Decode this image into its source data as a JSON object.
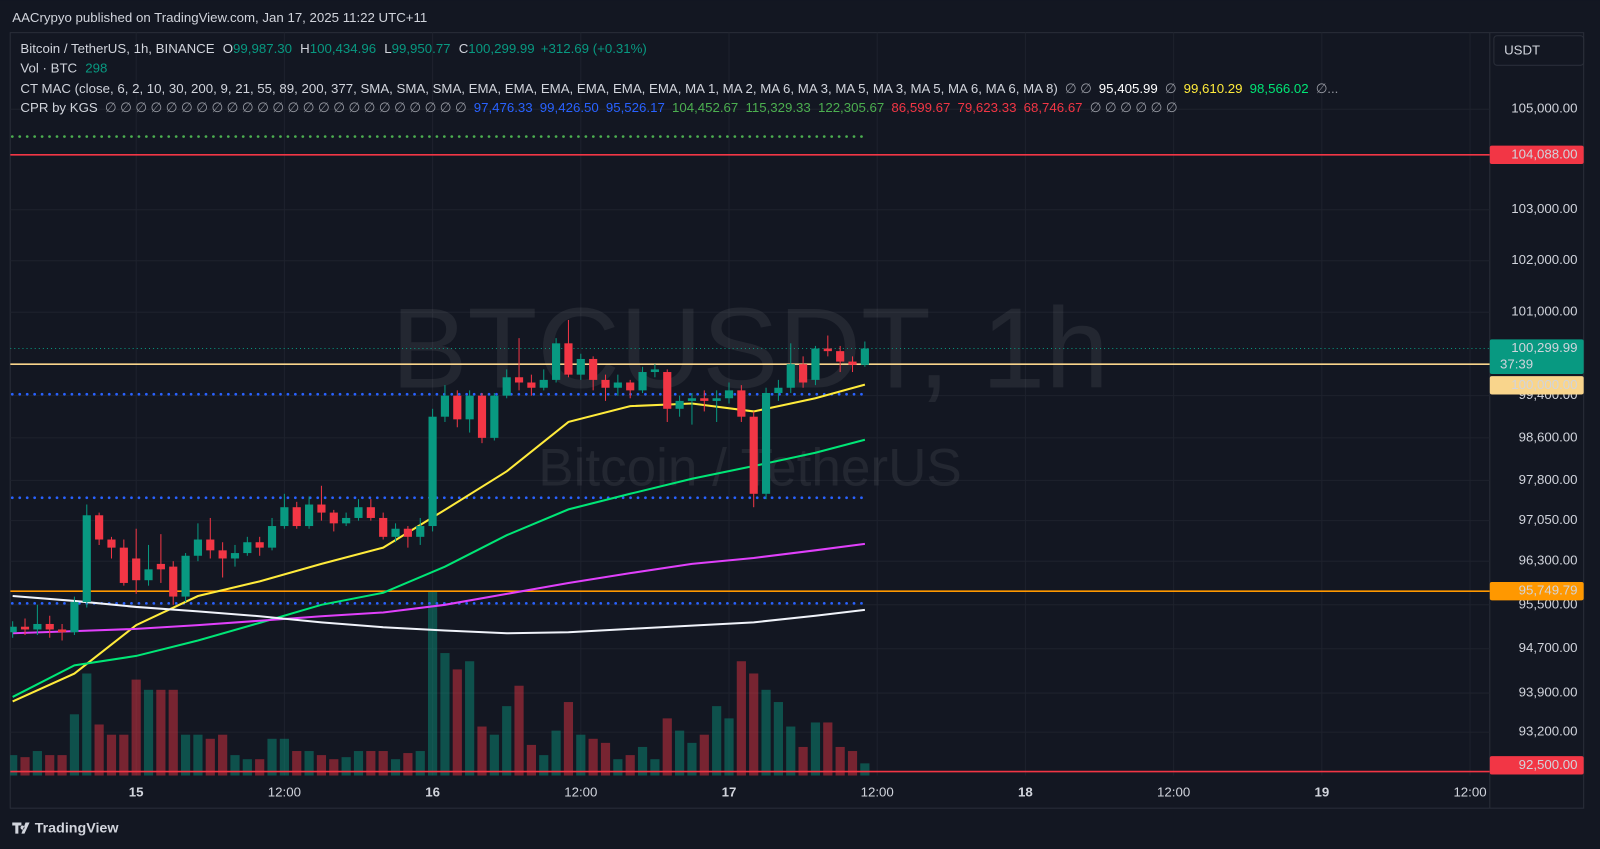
{
  "header": "AACrypyo published on TradingView.com, Jan 17, 2025 11:22 UTC+11",
  "brand": "TradingView",
  "currency": "USDT",
  "legend": {
    "symbol": "Bitcoin / TetherUS, 1h, BINANCE",
    "ohlc": [
      {
        "key": "O",
        "text": "99,987.30"
      },
      {
        "key": "H",
        "text": "100,434.96"
      },
      {
        "key": "L",
        "text": "99,950.77"
      },
      {
        "key": "C",
        "text": "100,299.99"
      }
    ],
    "change": "+312.69 (+0.31%)",
    "volume_title": "Vol · BTC",
    "indicator": {
      "name": "CT MAC (close, 6, 2, 10, 30, 200, 9, 21, 55, 89, 200, 377, SMA, SMA, SMA, EMA, EMA, EMA, EMA, EMA, EMA, MA 1, MA 2, MA 6, MA 3, MA 5, MA 3, MA 5, MA 6, MA 6, MA 8)",
      "items": [
        {
          "text": "∅ ∅",
          "color": "#9598a1"
        },
        {
          "text": "95,405.99",
          "color": "#ffffff"
        },
        {
          "text": "∅",
          "color": "#9598a1"
        },
        {
          "text": "99,610.29",
          "color": "#ffeb3b"
        },
        {
          "text": "98,566.02",
          "color": "#00e676"
        },
        {
          "text": "∅...",
          "color": "#9598a1"
        }
      ]
    },
    "cpr": {
      "name": "CPR by KGS",
      "prefix": "∅ ∅ ∅ ∅ ∅ ∅ ∅ ∅ ∅ ∅ ∅ ∅ ∅ ∅ ∅ ∅ ∅ ∅ ∅ ∅ ∅ ∅ ∅ ∅",
      "suffix": "∅ ∅ ∅ ∅ ∅ ∅"
    }
  },
  "chart_data": {
    "type": "candlestick",
    "watermark": [
      "BTCUSDT, 1h",
      "Bitcoin / TetherUS"
    ],
    "up_color": "#089981",
    "down_color": "#f23645",
    "log": true,
    "grid": true,
    "ylim": [
      92430,
      106550
    ],
    "yticks": [
      {
        "value": 105000,
        "label": "105,000.00"
      },
      {
        "value": 103000,
        "label": "103,000.00"
      },
      {
        "value": 102000,
        "label": "102,000.00"
      },
      {
        "value": 101000,
        "label": "101,000.00"
      },
      {
        "value": 99400,
        "label": "99,400.00"
      },
      {
        "value": 98600,
        "label": "98,600.00"
      },
      {
        "value": 97800,
        "label": "97,800.00"
      },
      {
        "value": 97050,
        "label": "97,050.00"
      },
      {
        "value": 96300,
        "label": "96,300.00"
      },
      {
        "value": 95500,
        "label": "95,500.00"
      },
      {
        "value": 94700,
        "label": "94,700.00"
      },
      {
        "value": 93900,
        "label": "93,900.00"
      },
      {
        "value": 93200,
        "label": "93,200.00"
      }
    ],
    "xlim": [
      "2025-01-14T13:48",
      "2025-01-19T13:36"
    ],
    "xticks": [
      {
        "value": "2025-01-15T00:00",
        "label": "15"
      },
      {
        "value": "2025-01-15T12:00",
        "label": "12:00"
      },
      {
        "value": "2025-01-16T00:00",
        "label": "16"
      },
      {
        "value": "2025-01-16T12:00",
        "label": "12:00"
      },
      {
        "value": "2025-01-17T00:00",
        "label": "17"
      },
      {
        "value": "2025-01-17T12:00",
        "label": "12:00"
      },
      {
        "value": "2025-01-18T00:00",
        "label": "18"
      },
      {
        "value": "2025-01-18T12:00",
        "label": "12:00"
      },
      {
        "value": "2025-01-19T00:00",
        "label": "19"
      },
      {
        "value": "2025-01-19T12:00",
        "label": "12:00"
      }
    ],
    "x": [
      "2025-01-14T14:00",
      "2025-01-14T15:00",
      "2025-01-14T16:00",
      "2025-01-14T17:00",
      "2025-01-14T18:00",
      "2025-01-14T19:00",
      "2025-01-14T20:00",
      "2025-01-14T21:00",
      "2025-01-14T22:00",
      "2025-01-14T23:00",
      "2025-01-15T00:00",
      "2025-01-15T01:00",
      "2025-01-15T02:00",
      "2025-01-15T03:00",
      "2025-01-15T04:00",
      "2025-01-15T05:00",
      "2025-01-15T06:00",
      "2025-01-15T07:00",
      "2025-01-15T08:00",
      "2025-01-15T09:00",
      "2025-01-15T10:00",
      "2025-01-15T11:00",
      "2025-01-15T12:00",
      "2025-01-15T13:00",
      "2025-01-15T14:00",
      "2025-01-15T15:00",
      "2025-01-15T16:00",
      "2025-01-15T17:00",
      "2025-01-15T18:00",
      "2025-01-15T19:00",
      "2025-01-15T20:00",
      "2025-01-15T21:00",
      "2025-01-15T22:00",
      "2025-01-15T23:00",
      "2025-01-16T00:00",
      "2025-01-16T01:00",
      "2025-01-16T02:00",
      "2025-01-16T03:00",
      "2025-01-16T04:00",
      "2025-01-16T05:00",
      "2025-01-16T06:00",
      "2025-01-16T07:00",
      "2025-01-16T08:00",
      "2025-01-16T09:00",
      "2025-01-16T10:00",
      "2025-01-16T11:00",
      "2025-01-16T12:00",
      "2025-01-16T13:00",
      "2025-01-16T14:00",
      "2025-01-16T15:00",
      "2025-01-16T16:00",
      "2025-01-16T17:00",
      "2025-01-16T18:00",
      "2025-01-16T19:00",
      "2025-01-16T20:00",
      "2025-01-16T21:00",
      "2025-01-16T22:00",
      "2025-01-16T23:00",
      "2025-01-17T00:00",
      "2025-01-17T01:00",
      "2025-01-17T02:00",
      "2025-01-17T03:00",
      "2025-01-17T04:00",
      "2025-01-17T05:00",
      "2025-01-17T06:00",
      "2025-01-17T07:00",
      "2025-01-17T08:00",
      "2025-01-17T09:00",
      "2025-01-17T10:00",
      "2025-01-17T11:00"
    ],
    "open": [
      95000,
      95100,
      95050,
      95150,
      95050,
      95000,
      95550,
      97150,
      96700,
      96550,
      96350,
      95950,
      96250,
      96200,
      95650,
      96400,
      96700,
      96500,
      96350,
      96450,
      96650,
      96550,
      96950,
      97300,
      96950,
      97350,
      97200,
      97000,
      97100,
      97300,
      97100,
      96750,
      96900,
      96750,
      96950,
      99000,
      99400,
      98950,
      99400,
      98600,
      99400,
      99750,
      99650,
      99550,
      99700,
      100400,
      99800,
      100100,
      99700,
      99550,
      99650,
      99500,
      99850,
      99850,
      99150,
      99300,
      99350,
      99300,
      99350,
      99500,
      99000,
      97550,
      99450,
      99550,
      100000,
      99700,
      100300,
      100250,
      100050,
      99987.3
    ],
    "high": [
      95200,
      95250,
      95500,
      95300,
      95150,
      95650,
      97350,
      97200,
      96750,
      96700,
      96900,
      96600,
      96800,
      96300,
      96450,
      97000,
      97100,
      96650,
      96600,
      96750,
      96750,
      97100,
      97550,
      97400,
      97500,
      97700,
      97250,
      97200,
      97450,
      97450,
      97200,
      97000,
      96950,
      97100,
      99150,
      99600,
      99500,
      99500,
      99450,
      99450,
      99900,
      100500,
      99800,
      99900,
      100500,
      100850,
      100200,
      100150,
      99800,
      99800,
      99700,
      99950,
      100000,
      99900,
      99400,
      99450,
      99500,
      99500,
      99650,
      99600,
      99100,
      99550,
      99700,
      100400,
      100150,
      100350,
      100550,
      100350,
      100150,
      100434.96
    ],
    "low": [
      94900,
      94950,
      94950,
      94900,
      94850,
      94950,
      95450,
      96600,
      96350,
      95850,
      95700,
      95850,
      95900,
      95500,
      95550,
      96300,
      96350,
      96000,
      96200,
      96400,
      96400,
      96500,
      96900,
      96900,
      96900,
      97050,
      96850,
      96950,
      97050,
      97050,
      96700,
      96650,
      96550,
      96600,
      96850,
      98900,
      98800,
      98700,
      98500,
      98550,
      99350,
      99500,
      99400,
      99500,
      99650,
      99750,
      99700,
      99500,
      99300,
      99400,
      99350,
      99450,
      99750,
      98900,
      99000,
      98850,
      99100,
      98900,
      99250,
      98900,
      97300,
      97450,
      99300,
      99450,
      99550,
      99600,
      100150,
      99850,
      99850,
      99950.77
    ],
    "close": [
      95100,
      95050,
      95150,
      95050,
      95000,
      95550,
      97150,
      96700,
      96550,
      95900,
      95950,
      96150,
      96150,
      95650,
      96400,
      96700,
      96500,
      96350,
      96450,
      96650,
      96550,
      96950,
      97300,
      96950,
      97350,
      97200,
      97000,
      97100,
      97300,
      97100,
      96750,
      96900,
      96750,
      96950,
      99000,
      99400,
      98950,
      99400,
      98600,
      99400,
      99750,
      99650,
      99550,
      99700,
      100400,
      99800,
      100100,
      99700,
      99550,
      99650,
      99500,
      99850,
      99900,
      99150,
      99300,
      99350,
      99300,
      99350,
      99500,
      99000,
      97550,
      99450,
      99550,
      100000,
      99650,
      100300,
      100250,
      100050,
      99987.3,
      100299.99
    ],
    "volume": {
      "values": [
        500,
        450,
        600,
        500,
        500,
        1500,
        2500,
        1250,
        1000,
        1000,
        2350,
        2100,
        2100,
        2100,
        1000,
        1000,
        900,
        1000,
        500,
        400,
        400,
        900,
        900,
        600,
        600,
        500,
        400,
        450,
        600,
        600,
        600,
        400,
        550,
        600,
        4500,
        3000,
        2600,
        2800,
        1200,
        1000,
        1700,
        2200,
        750,
        500,
        1100,
        1800,
        1000,
        900,
        800,
        400,
        500,
        700,
        400,
        1400,
        1100,
        800,
        1000,
        1700,
        1400,
        2800,
        2500,
        2100,
        1800,
        1200,
        700,
        1300,
        1300,
        700,
        600,
        298
      ]
    },
    "lines": [
      {
        "color": "#ffeb3b",
        "x": [
          "2025-01-14T14:00",
          "2025-01-14T19:00",
          "2025-01-15T00:00",
          "2025-01-15T05:00",
          "2025-01-15T10:00",
          "2025-01-15T15:00",
          "2025-01-15T20:00",
          "2025-01-16T01:00",
          "2025-01-16T06:00",
          "2025-01-16T11:00",
          "2025-01-16T16:00",
          "2025-01-16T21:00",
          "2025-01-17T02:00",
          "2025-01-17T07:00",
          "2025-01-17T11:00"
        ],
        "values": [
          93750,
          94250,
          95130,
          95660,
          95930,
          96250,
          96550,
          97250,
          97970,
          98900,
          99200,
          99250,
          99100,
          99350,
          99610.29
        ]
      },
      {
        "color": "#00e676",
        "x": [
          "2025-01-14T14:00",
          "2025-01-14T19:00",
          "2025-01-15T00:00",
          "2025-01-15T05:00",
          "2025-01-15T10:00",
          "2025-01-15T15:00",
          "2025-01-15T20:00",
          "2025-01-16T01:00",
          "2025-01-16T06:00",
          "2025-01-16T11:00",
          "2025-01-16T16:00",
          "2025-01-16T21:00",
          "2025-01-17T02:00",
          "2025-01-17T07:00",
          "2025-01-17T11:00"
        ],
        "values": [
          93830,
          94400,
          94570,
          94850,
          95170,
          95500,
          95720,
          96200,
          96780,
          97260,
          97550,
          97830,
          98070,
          98320,
          98566.02
        ]
      },
      {
        "color": "#e040fb",
        "x": [
          "2025-01-14T14:00",
          "2025-01-14T19:00",
          "2025-01-15T00:00",
          "2025-01-15T05:00",
          "2025-01-15T10:00",
          "2025-01-15T15:00",
          "2025-01-15T20:00",
          "2025-01-16T01:00",
          "2025-01-16T06:00",
          "2025-01-16T11:00",
          "2025-01-16T16:00",
          "2025-01-16T21:00",
          "2025-01-17T02:00",
          "2025-01-17T07:00",
          "2025-01-17T11:00"
        ],
        "values": [
          94980,
          95020,
          95060,
          95130,
          95210,
          95290,
          95360,
          95500,
          95700,
          95900,
          96080,
          96250,
          96360,
          96500,
          96620
        ]
      },
      {
        "color": "#f0f3fa",
        "x": [
          "2025-01-14T14:00",
          "2025-01-14T19:00",
          "2025-01-15T00:00",
          "2025-01-15T05:00",
          "2025-01-15T10:00",
          "2025-01-15T15:00",
          "2025-01-15T20:00",
          "2025-01-16T01:00",
          "2025-01-16T06:00",
          "2025-01-16T11:00",
          "2025-01-16T16:00",
          "2025-01-16T21:00",
          "2025-01-17T02:00",
          "2025-01-17T07:00",
          "2025-01-17T11:00"
        ],
        "values": [
          95660,
          95570,
          95460,
          95380,
          95290,
          95180,
          95090,
          95030,
          94980,
          95000,
          95060,
          95120,
          95180,
          95300,
          95405.99
        ]
      }
    ],
    "cpr_levels": [
      {
        "value": 97476.33,
        "label": "97,476.33",
        "color": "#2962ff"
      },
      {
        "value": 99426.5,
        "label": "99,426.50",
        "color": "#2962ff"
      },
      {
        "value": 95526.17,
        "label": "95,526.17",
        "color": "#2962ff"
      },
      {
        "value": 104452.67,
        "label": "104,452.67",
        "color": "#4caf50"
      },
      {
        "value": 115329.33,
        "label": "115,329.33",
        "color": "#4caf50"
      },
      {
        "value": 122305.67,
        "label": "122,305.67",
        "color": "#4caf50"
      },
      {
        "value": 86599.67,
        "label": "86,599.67",
        "color": "#f23645"
      },
      {
        "value": 79623.33,
        "label": "79,623.33",
        "color": "#f23645"
      },
      {
        "value": 68746.67,
        "label": "68,746.67",
        "color": "#f23645"
      }
    ],
    "levels": [
      {
        "value": 104088,
        "label": "104,088.00",
        "color": "#f23645",
        "text_color": "#ffffff"
      },
      {
        "value": 100000,
        "label": "100,000.00",
        "color": "#f9d58c",
        "text_color": "#131722"
      },
      {
        "value": 95749.79,
        "label": "95,749.79",
        "color": "#ff9800",
        "text_color": "#131722"
      },
      {
        "value": 92500,
        "label": "92,500.00",
        "color": "#f23645",
        "text_color": "#ffffff"
      }
    ],
    "last_price": {
      "value": 100299.99,
      "label": "100,299.99",
      "countdown": "37:39",
      "color": "#089981"
    }
  }
}
